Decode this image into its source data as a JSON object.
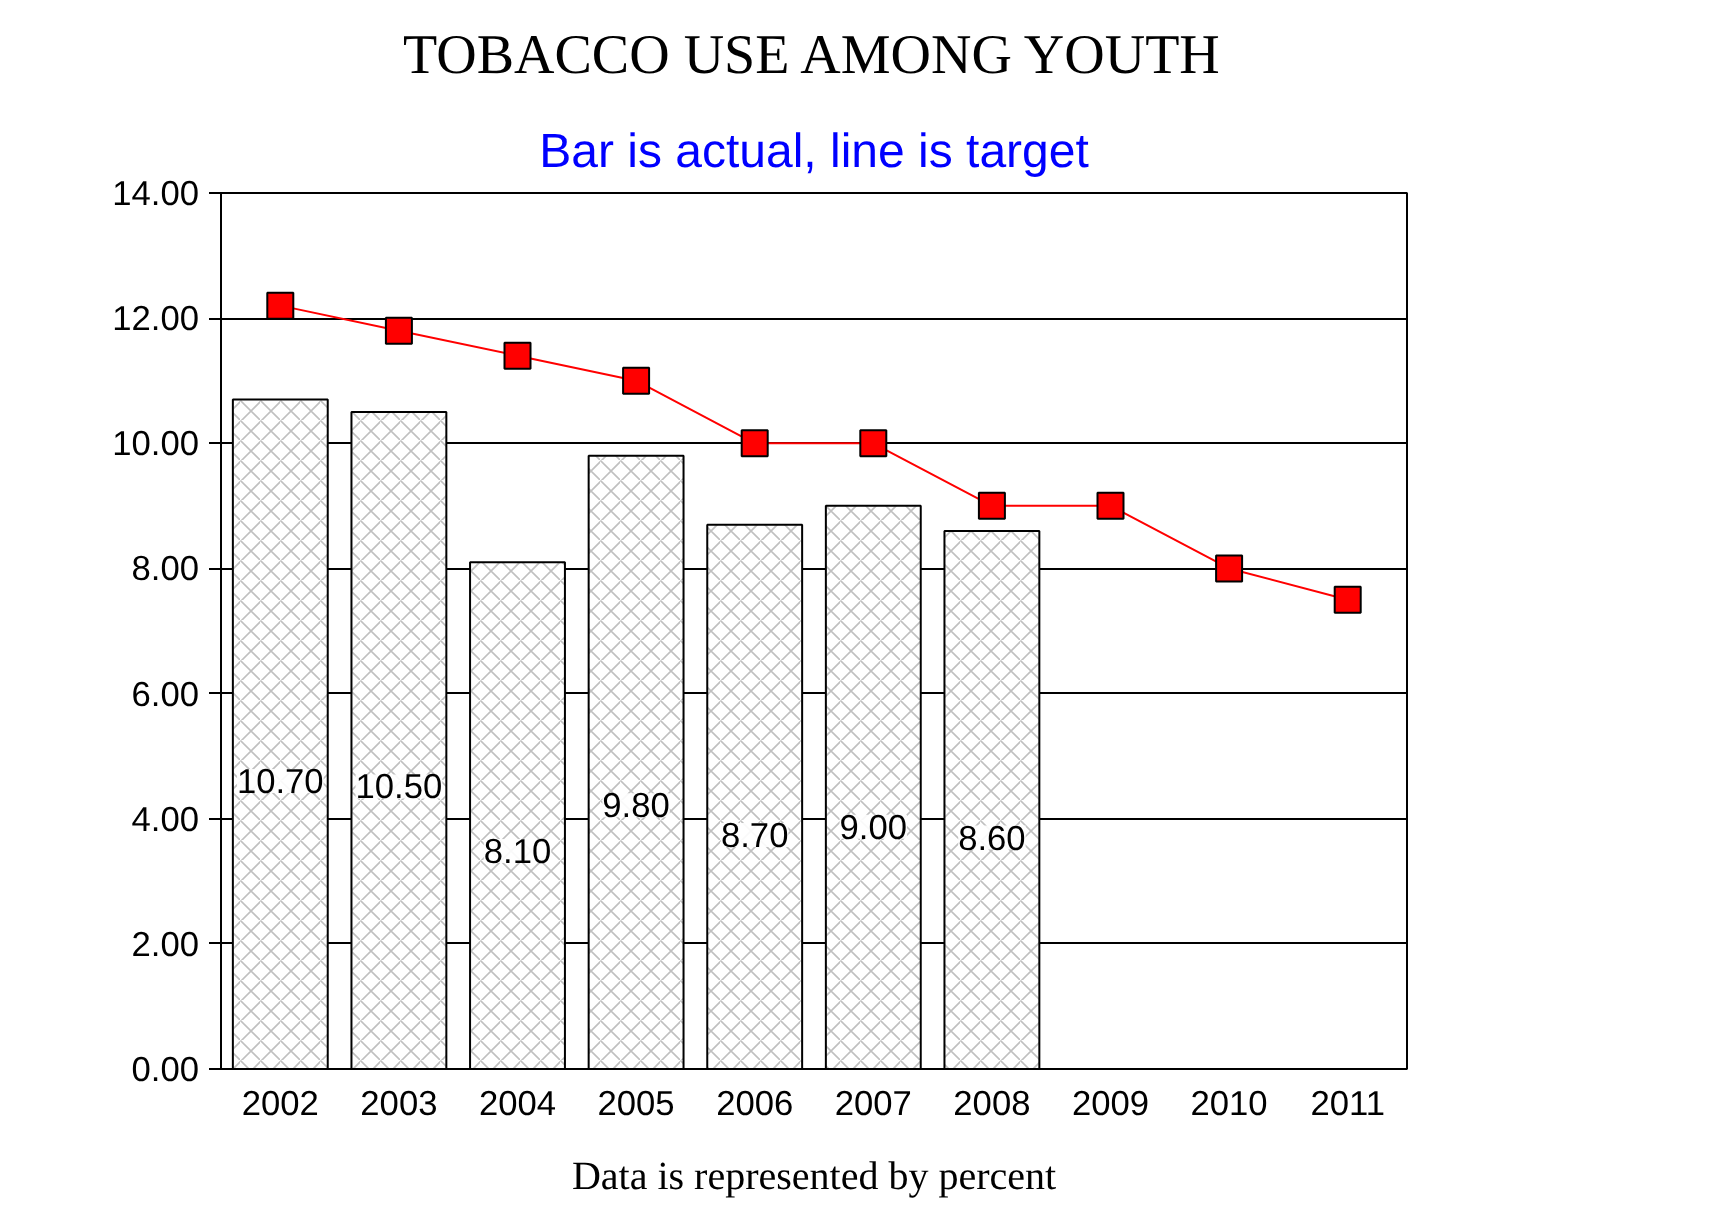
{
  "chart_data": {
    "type": "bar",
    "title": "TOBACCO USE AMONG YOUTH",
    "subtitle": "Bar is actual, line is target",
    "categories": [
      "2002",
      "2003",
      "2004",
      "2005",
      "2006",
      "2007",
      "2008",
      "2009",
      "2010",
      "2011"
    ],
    "series": [
      {
        "color": "#ffffff",
        "values": [
          10.7,
          10.5,
          8.1,
          9.8,
          8.7,
          9.0,
          8.6,
          null,
          null,
          null
        ],
        "value_labels": [
          "10.70",
          "10.50",
          "8.10",
          "9.80",
          "8.70",
          "9.00",
          "8.60",
          null,
          null,
          null
        ]
      },
      {
        "type": "line",
        "color": "#ff0000",
        "marker": "square",
        "values": [
          12.2,
          11.8,
          11.4,
          11.0,
          10.0,
          10.0,
          9.0,
          9.0,
          8.0,
          7.5
        ]
      }
    ],
    "ylim": [
      0,
      14
    ],
    "yticks": [
      {
        "value": 0,
        "label": "0.00"
      },
      {
        "value": 2,
        "label": "2.00"
      },
      {
        "value": 4,
        "label": "4.00"
      },
      {
        "value": 6,
        "label": "6.00"
      },
      {
        "value": 8,
        "label": "8.00"
      },
      {
        "value": 10,
        "label": "10.00"
      },
      {
        "value": 12,
        "label": "12.00"
      },
      {
        "value": 14,
        "label": "14.00"
      }
    ],
    "grid": "y",
    "annotations": [
      "Data is represented by percent"
    ]
  }
}
